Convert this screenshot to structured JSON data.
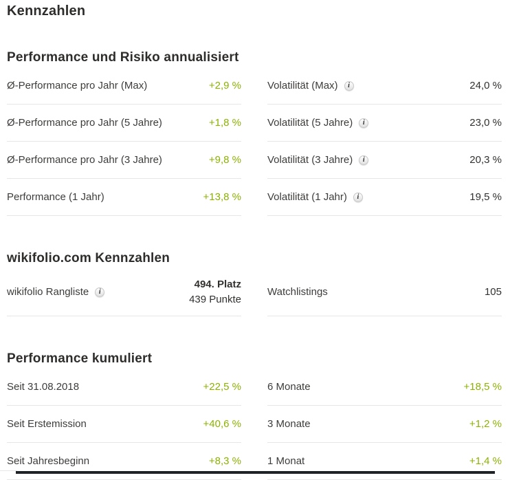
{
  "page": {
    "title": "Kennzahlen"
  },
  "colors": {
    "positive_green": "#8bb300",
    "heading_text": "#2e2d2b",
    "label_text": "#3d3c3a",
    "value_text": "#32312f",
    "separator": "#e6e6e6",
    "bottom_bar": "#1e2328"
  },
  "icons": {
    "info": "i"
  },
  "sections": [
    {
      "title": "Performance und Risiko annualisiert",
      "rows": [
        {
          "left": {
            "label": "Ø-Performance pro Jahr (Max)",
            "value": "+2,9 %"
          },
          "right": {
            "label": "Volatilität (Max)",
            "value": "24,0 %"
          }
        },
        {
          "left": {
            "label": "Ø-Performance pro Jahr (5 Jahre)",
            "value": "+1,8 %"
          },
          "right": {
            "label": "Volatilität (5 Jahre)",
            "value": "23,0 %"
          }
        },
        {
          "left": {
            "label": "Ø-Performance pro Jahr (3 Jahre)",
            "value": "+9,8 %"
          },
          "right": {
            "label": "Volatilität (3 Jahre)",
            "value": "20,3 %"
          }
        },
        {
          "left": {
            "label": "Performance (1 Jahr)",
            "value": "+13,8 %"
          },
          "right": {
            "label": "Volatilität (1 Jahr)",
            "value": "19,5 %"
          }
        }
      ]
    },
    {
      "title": "wikifolio.com Kennzahlen",
      "rows": [
        {
          "left": {
            "label": "wikifolio Rangliste",
            "value_line1": "494. Platz",
            "value_line2": "439 Punkte"
          },
          "right": {
            "label": "Watchlistings",
            "value": "105"
          }
        }
      ]
    },
    {
      "title": "Performance kumuliert",
      "rows": [
        {
          "left": {
            "label": "Seit 31.08.2018",
            "value": "+22,5 %"
          },
          "right": {
            "label": "6 Monate",
            "value": "+18,5 %"
          }
        },
        {
          "left": {
            "label": "Seit Erstemission",
            "value": "+40,6 %"
          },
          "right": {
            "label": "3 Monate",
            "value": "+1,2 %"
          }
        },
        {
          "left": {
            "label": "Seit Jahresbeginn",
            "value": "+8,3 %"
          },
          "right": {
            "label": "1 Monat",
            "value": "+1,4 %"
          }
        }
      ]
    }
  ]
}
